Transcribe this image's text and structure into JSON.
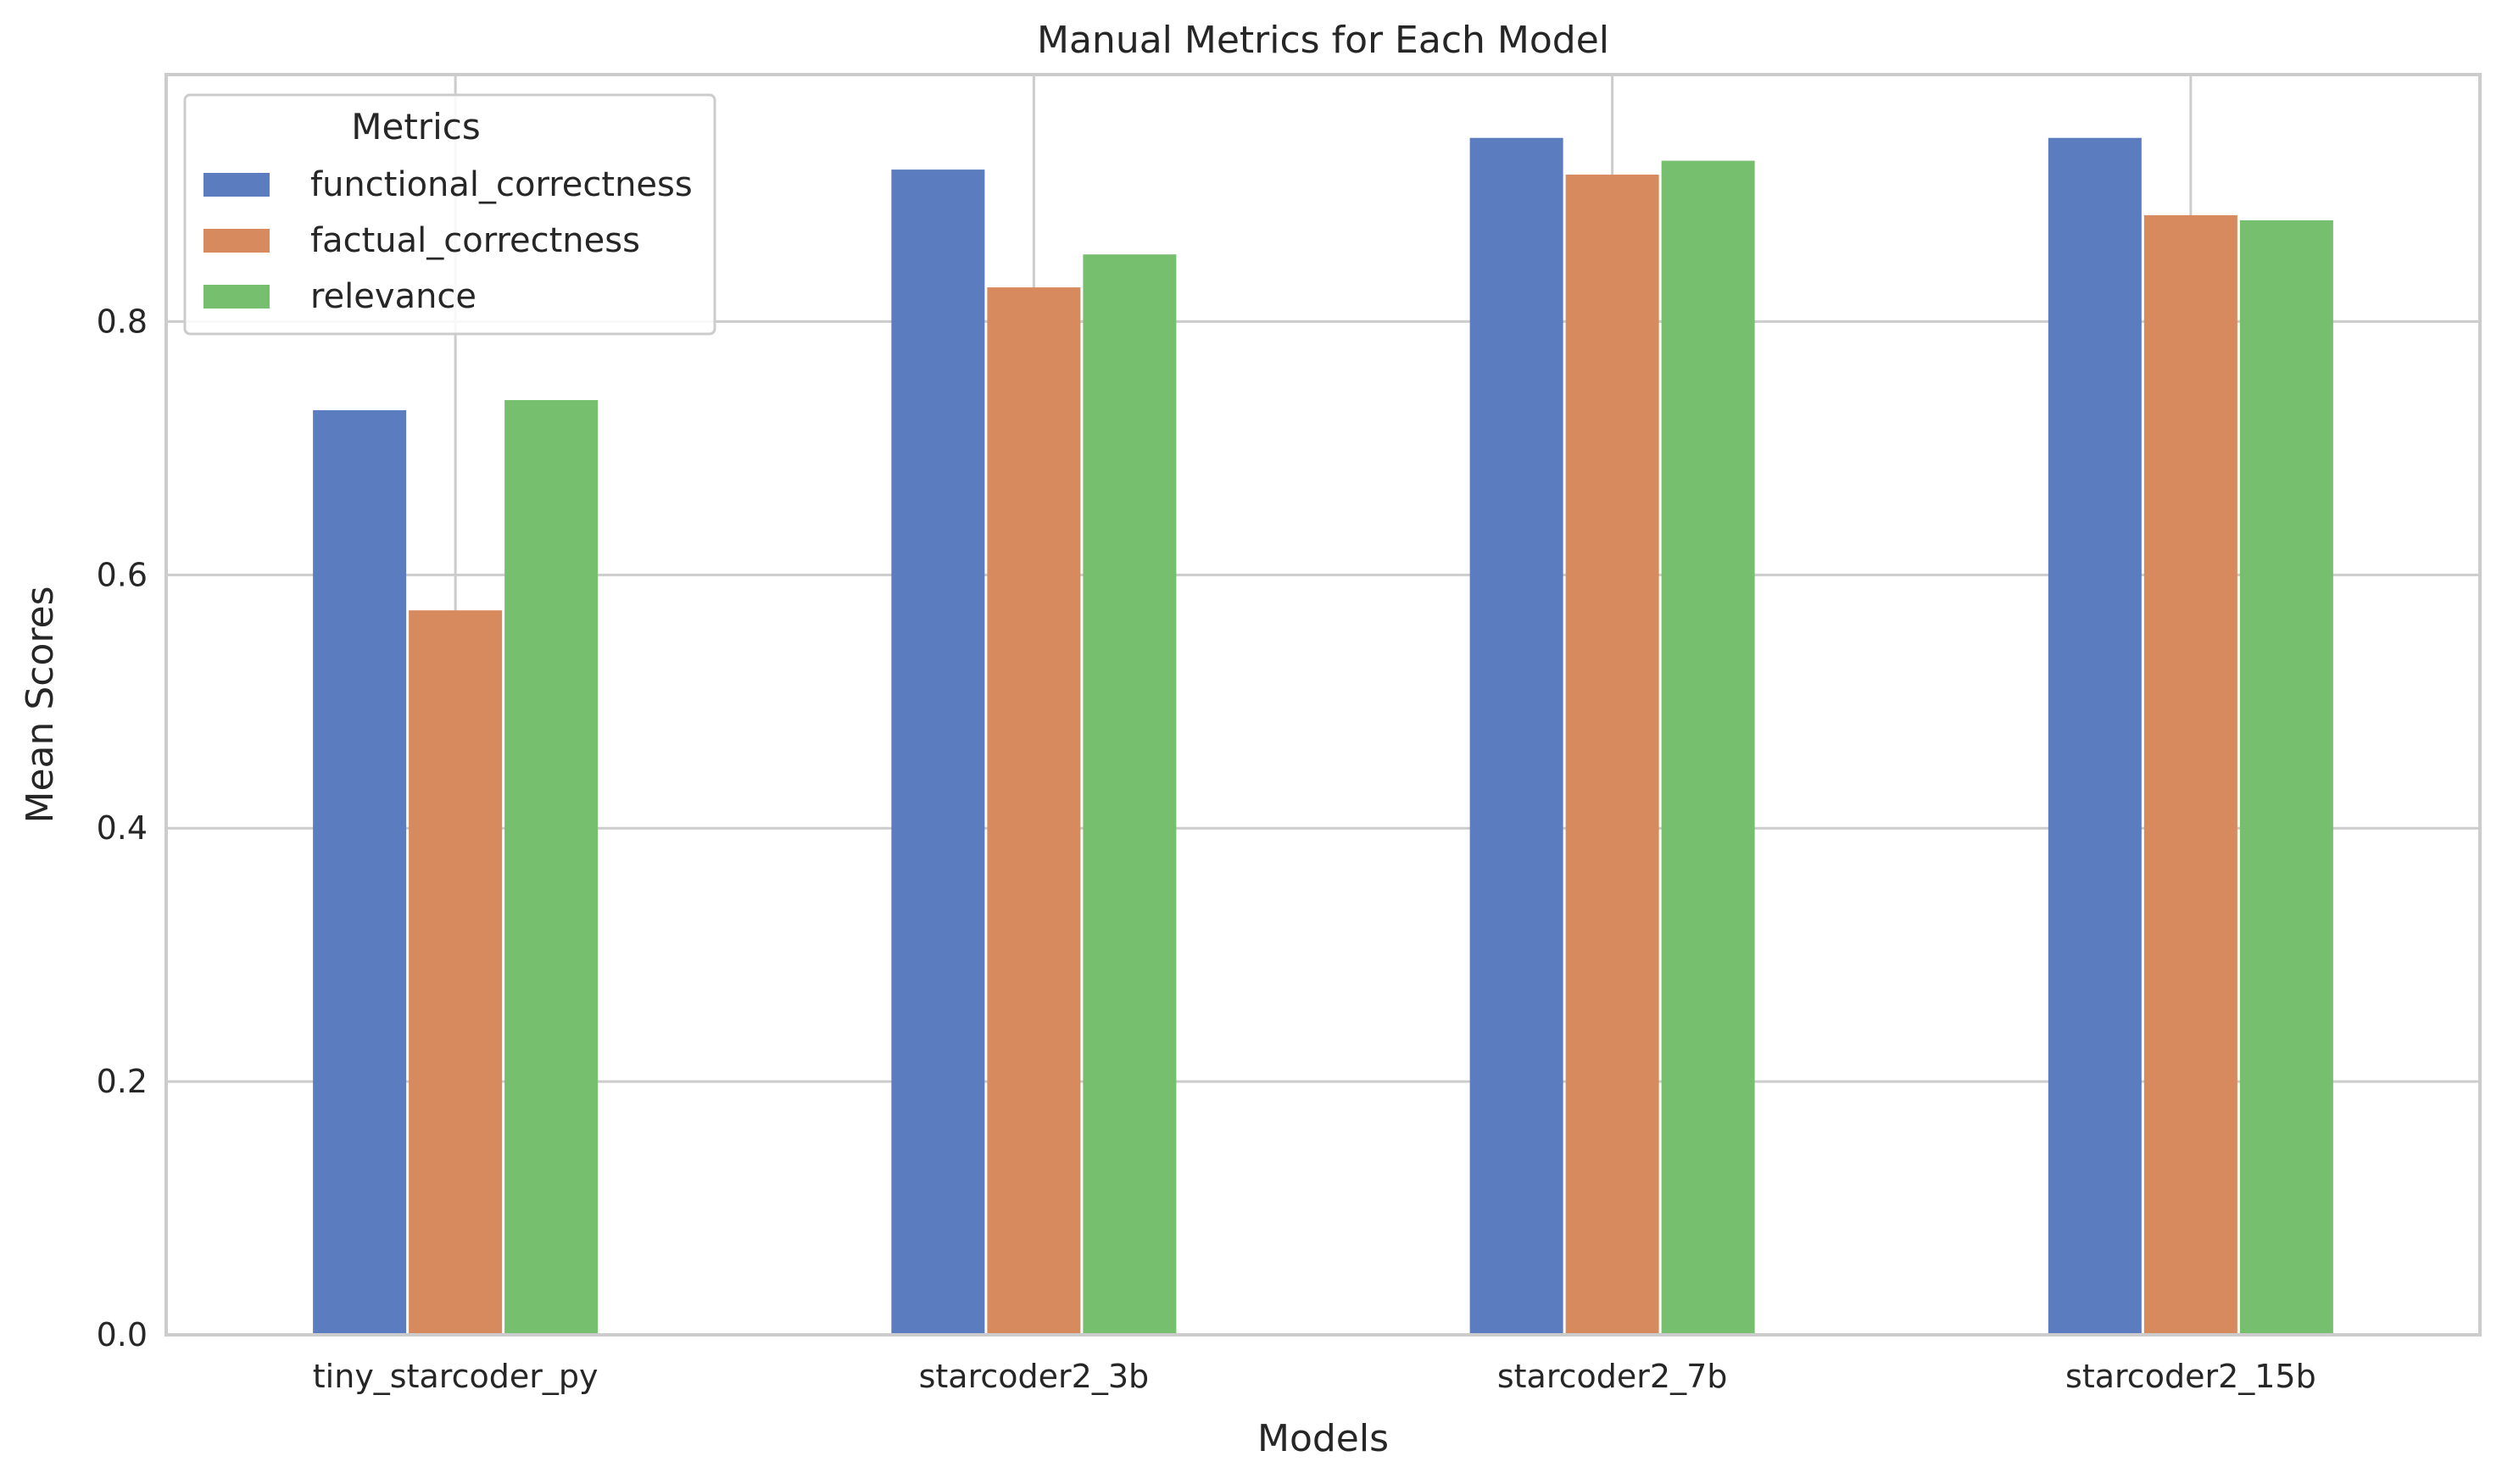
{
  "chart_data": {
    "type": "bar",
    "title": "Manual Metrics for Each Model",
    "xlabel": "Models",
    "ylabel": "Mean Scores",
    "categories": [
      "tiny_starcoder_py",
      "starcoder2_3b",
      "starcoder2_7b",
      "starcoder2_15b"
    ],
    "series": [
      {
        "name": "functional_correctness",
        "color": "#5b7dbf",
        "values": [
          0.73,
          0.92,
          0.945,
          0.945
        ]
      },
      {
        "name": "factual_correctness",
        "color": "#d88a5f",
        "values": [
          0.572,
          0.827,
          0.916,
          0.884
        ]
      },
      {
        "name": "relevance",
        "color": "#76bf6f",
        "values": [
          0.738,
          0.853,
          0.927,
          0.88
        ]
      }
    ],
    "ylim": [
      0,
      0.995
    ],
    "yticks": [
      0.0,
      0.2,
      0.4,
      0.6,
      0.8
    ],
    "ytick_labels": [
      "0.0",
      "0.2",
      "0.4",
      "0.6",
      "0.8"
    ],
    "grid": true,
    "legend": {
      "title": "Metrics",
      "placement": "top-left"
    }
  }
}
